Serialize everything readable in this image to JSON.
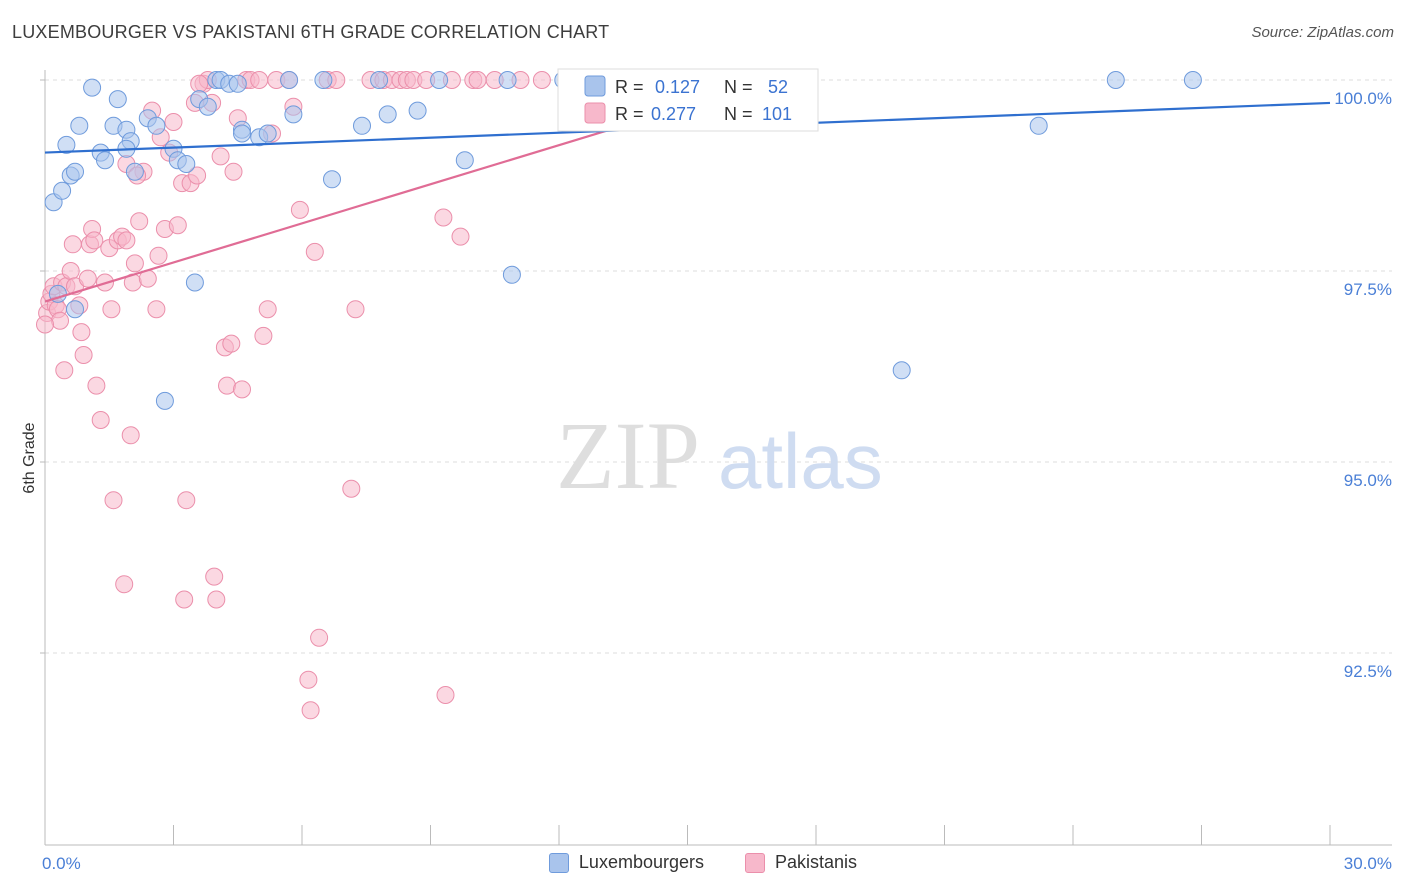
{
  "header": {
    "title": "LUXEMBOURGER VS PAKISTANI 6TH GRADE CORRELATION CHART",
    "source": "Source: ZipAtlas.com"
  },
  "watermark": {
    "zip": "ZIP",
    "atlas": "atlas"
  },
  "legend": {
    "series": [
      {
        "r_label": "R =",
        "r_value": "0.127",
        "n_label": "N =",
        "n_value": "52"
      },
      {
        "r_label": "R =",
        "r_value": "0.277",
        "n_label": "N =",
        "n_value": "101"
      }
    ],
    "bottom": [
      "Luxembourgers",
      "Pakistanis"
    ]
  },
  "colors": {
    "blue_fill": "#a9c4ec",
    "blue_stroke": "#6f9bdc",
    "blue_line": "#2f6fcf",
    "pink_fill": "#f7b8cb",
    "pink_stroke": "#eb8fab",
    "pink_line": "#e06c95",
    "grid": "#dddddd",
    "tick_text": "#4a7fd6"
  },
  "chart_data": {
    "type": "scatter",
    "title": "LUXEMBOURGER VS PAKISTANI 6TH GRADE CORRELATION CHART",
    "xlabel": "",
    "ylabel": "6th Grade",
    "xlim": [
      0,
      30
    ],
    "ylim": [
      90.4,
      100.5
    ],
    "x_tick_labels": [
      "0.0%",
      "30.0%"
    ],
    "y_ticks": [
      92.5,
      95.0,
      97.5,
      100.0
    ],
    "y_tick_labels": [
      "92.5%",
      "95.0%",
      "97.5%",
      "100.0%"
    ],
    "series": [
      {
        "name": "Luxembourgers",
        "color": "#a9c4ec",
        "trend": {
          "x0": 0,
          "y0": 99.05,
          "x1": 30,
          "y1": 99.7
        },
        "points": [
          [
            0.2,
            98.4
          ],
          [
            0.4,
            98.55
          ],
          [
            0.5,
            99.15
          ],
          [
            0.6,
            98.75
          ],
          [
            0.7,
            98.8
          ],
          [
            0.8,
            99.4
          ],
          [
            1.1,
            99.9
          ],
          [
            1.3,
            99.05
          ],
          [
            1.4,
            98.95
          ],
          [
            1.6,
            99.4
          ],
          [
            1.7,
            99.75
          ],
          [
            1.9,
            99.35
          ],
          [
            2.0,
            99.2
          ],
          [
            2.1,
            98.8
          ],
          [
            2.4,
            99.5
          ],
          [
            2.6,
            99.4
          ],
          [
            3.0,
            99.1
          ],
          [
            3.1,
            98.95
          ],
          [
            3.3,
            98.9
          ],
          [
            3.6,
            99.75
          ],
          [
            3.8,
            99.65
          ],
          [
            4.0,
            100.0
          ],
          [
            4.1,
            100.0
          ],
          [
            4.3,
            99.95
          ],
          [
            4.5,
            99.95
          ],
          [
            4.6,
            99.35
          ],
          [
            5.0,
            99.25
          ],
          [
            5.7,
            100.0
          ],
          [
            5.8,
            99.55
          ],
          [
            6.5,
            100.0
          ],
          [
            6.7,
            98.7
          ],
          [
            7.4,
            99.4
          ],
          [
            7.8,
            100.0
          ],
          [
            8.0,
            99.55
          ],
          [
            8.7,
            99.6
          ],
          [
            9.2,
            100.0
          ],
          [
            9.8,
            98.95
          ],
          [
            10.8,
            100.0
          ],
          [
            10.9,
            97.45
          ],
          [
            12.1,
            100.0
          ],
          [
            12.8,
            100.0
          ],
          [
            20.0,
            96.2
          ],
          [
            23.2,
            99.4
          ],
          [
            25.0,
            100.0
          ],
          [
            26.8,
            100.0
          ],
          [
            0.7,
            97.0
          ],
          [
            2.8,
            95.8
          ],
          [
            3.5,
            97.35
          ],
          [
            0.3,
            97.2
          ],
          [
            5.2,
            99.3
          ],
          [
            1.9,
            99.1
          ],
          [
            4.6,
            99.3
          ]
        ]
      },
      {
        "name": "Pakistanis",
        "color": "#f7b8cb",
        "trend": {
          "x0": 0,
          "y0": 97.1,
          "x1": 17.0,
          "y1": 100.0
        },
        "points": [
          [
            0.05,
            96.95
          ],
          [
            0.1,
            97.1
          ],
          [
            0.15,
            97.2
          ],
          [
            0.2,
            97.3
          ],
          [
            0.25,
            97.05
          ],
          [
            0.3,
            97.0
          ],
          [
            0.35,
            96.85
          ],
          [
            0.4,
            97.35
          ],
          [
            0.45,
            96.2
          ],
          [
            0.5,
            97.3
          ],
          [
            0.6,
            97.5
          ],
          [
            0.65,
            97.85
          ],
          [
            0.7,
            97.3
          ],
          [
            0.8,
            97.05
          ],
          [
            0.85,
            96.7
          ],
          [
            0.9,
            96.4
          ],
          [
            1.0,
            97.4
          ],
          [
            1.05,
            97.85
          ],
          [
            1.1,
            98.05
          ],
          [
            1.15,
            97.9
          ],
          [
            1.2,
            96.0
          ],
          [
            1.3,
            95.55
          ],
          [
            1.4,
            97.35
          ],
          [
            1.5,
            97.8
          ],
          [
            1.55,
            97.0
          ],
          [
            1.6,
            94.5
          ],
          [
            1.7,
            97.9
          ],
          [
            1.8,
            97.95
          ],
          [
            1.85,
            93.4
          ],
          [
            1.9,
            98.9
          ],
          [
            2.0,
            95.35
          ],
          [
            2.05,
            97.35
          ],
          [
            2.1,
            97.6
          ],
          [
            2.2,
            98.15
          ],
          [
            2.3,
            98.8
          ],
          [
            2.4,
            97.4
          ],
          [
            2.5,
            99.6
          ],
          [
            2.6,
            97.0
          ],
          [
            2.65,
            97.7
          ],
          [
            2.7,
            99.25
          ],
          [
            2.8,
            98.05
          ],
          [
            2.9,
            99.05
          ],
          [
            3.0,
            99.45
          ],
          [
            3.1,
            98.1
          ],
          [
            3.2,
            98.65
          ],
          [
            3.25,
            93.2
          ],
          [
            3.3,
            94.5
          ],
          [
            3.4,
            98.65
          ],
          [
            3.5,
            99.7
          ],
          [
            3.55,
            98.75
          ],
          [
            3.7,
            99.95
          ],
          [
            3.8,
            100.0
          ],
          [
            3.9,
            99.7
          ],
          [
            3.95,
            93.5
          ],
          [
            4.0,
            93.2
          ],
          [
            4.1,
            99.0
          ],
          [
            4.2,
            96.5
          ],
          [
            4.25,
            96.0
          ],
          [
            4.35,
            96.55
          ],
          [
            4.4,
            98.8
          ],
          [
            4.5,
            99.5
          ],
          [
            4.6,
            95.95
          ],
          [
            4.7,
            100.0
          ],
          [
            4.8,
            100.0
          ],
          [
            5.0,
            100.0
          ],
          [
            5.1,
            96.65
          ],
          [
            5.2,
            97.0
          ],
          [
            5.3,
            99.3
          ],
          [
            5.4,
            100.0
          ],
          [
            5.7,
            100.0
          ],
          [
            5.8,
            99.65
          ],
          [
            5.95,
            98.3
          ],
          [
            6.15,
            92.15
          ],
          [
            6.2,
            91.75
          ],
          [
            6.3,
            97.75
          ],
          [
            6.4,
            92.7
          ],
          [
            6.6,
            100.0
          ],
          [
            6.8,
            100.0
          ],
          [
            7.15,
            94.65
          ],
          [
            7.25,
            97.0
          ],
          [
            7.6,
            100.0
          ],
          [
            7.9,
            100.0
          ],
          [
            8.1,
            100.0
          ],
          [
            8.3,
            100.0
          ],
          [
            8.45,
            100.0
          ],
          [
            8.6,
            100.0
          ],
          [
            9.3,
            98.2
          ],
          [
            9.35,
            91.95
          ],
          [
            9.7,
            97.95
          ],
          [
            10.0,
            100.0
          ],
          [
            10.1,
            100.0
          ],
          [
            10.5,
            100.0
          ],
          [
            11.1,
            100.0
          ],
          [
            11.6,
            100.0
          ],
          [
            12.2,
            100.0
          ],
          [
            0.0,
            96.8
          ],
          [
            1.9,
            97.9
          ],
          [
            2.15,
            98.75
          ],
          [
            3.6,
            99.95
          ],
          [
            8.9,
            100.0
          ],
          [
            9.5,
            100.0
          ]
        ]
      }
    ]
  }
}
